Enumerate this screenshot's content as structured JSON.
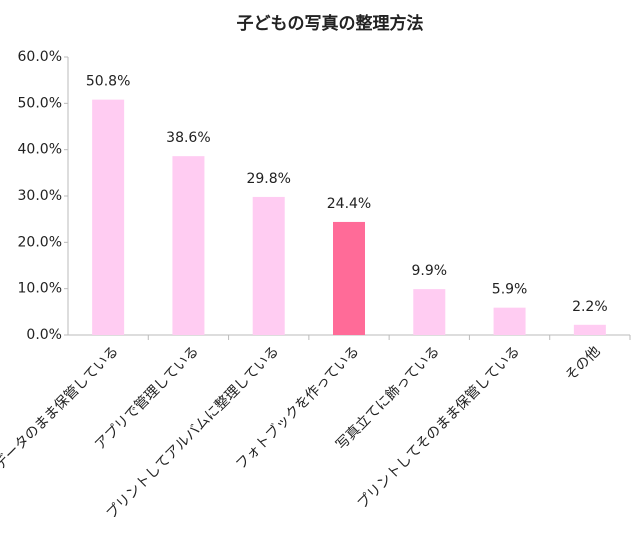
{
  "chart_data": {
    "type": "bar",
    "title": "子どもの写真の整理方法",
    "categories": [
      "データのまま保管している",
      "アプリで管理している",
      "プリントしてアルバムに整理している",
      "フォトブックを作っている",
      "写真立てに飾っている",
      "プリントしてそのまま保管している",
      "その他"
    ],
    "values": [
      50.8,
      38.6,
      29.8,
      24.4,
      9.9,
      5.9,
      2.2
    ],
    "value_labels": [
      "50.8%",
      "38.6%",
      "29.8%",
      "24.4%",
      "9.9%",
      "5.9%",
      "2.2%"
    ],
    "colors": [
      "#ffccf2",
      "#ffccf2",
      "#ffccf2",
      "#ff6b98",
      "#ffccf2",
      "#ffccf2",
      "#ffccf2"
    ],
    "ylim": [
      0,
      60
    ],
    "yticks": [
      {
        "value": 0,
        "label": "0.0%"
      },
      {
        "value": 10,
        "label": "10.0%"
      },
      {
        "value": 20,
        "label": "20.0%"
      },
      {
        "value": 30,
        "label": "30.0%"
      },
      {
        "value": 40,
        "label": "40.0%"
      },
      {
        "value": 50,
        "label": "50.0%"
      },
      {
        "value": 60,
        "label": "60.0%"
      }
    ],
    "grid": false
  }
}
